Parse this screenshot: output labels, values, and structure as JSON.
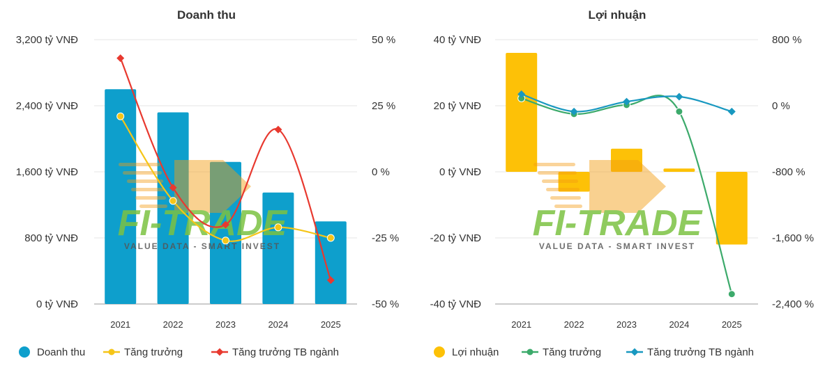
{
  "colors": {
    "revenue_bar": "#0e9fcc",
    "revenue_growth": "#f5c518",
    "revenue_industry": "#e8392f",
    "profit_bar": "#fdc107",
    "profit_growth": "#3caa6b",
    "profit_industry": "#1898c0",
    "grid": "#e6e6e6",
    "watermark_green": "#7cc242",
    "watermark_orange": "#f39c12"
  },
  "watermark": {
    "brand": "FI-TRADE",
    "tagline": "VALUE DATA - SMART INVEST"
  },
  "chart_data": [
    {
      "type": "bar",
      "title": "Doanh thu",
      "categories": [
        "2021",
        "2022",
        "2023",
        "2024",
        "2025"
      ],
      "y_left": {
        "ylim": [
          0,
          3200
        ],
        "ticks": [
          0,
          800,
          1600,
          2400,
          3200
        ],
        "tick_labels": [
          "0 tỷ VNĐ",
          "800 tỷ VNĐ",
          "1,600 tỷ VNĐ",
          "2,400 tỷ VNĐ",
          "3,200 tỷ VNĐ"
        ]
      },
      "y_right": {
        "ylim": [
          -50,
          50
        ],
        "ticks": [
          -50,
          -25,
          0,
          25,
          50
        ],
        "tick_labels": [
          "-50 %",
          "-25 %",
          "0 %",
          "25 %",
          "50 %"
        ]
      },
      "grid": true,
      "legend_position": "bottom",
      "series": [
        {
          "name": "Doanh thu",
          "kind": "bar",
          "axis": "left",
          "values": [
            2600,
            2320,
            1720,
            1350,
            1000
          ]
        },
        {
          "name": "Tăng trưởng",
          "kind": "line",
          "axis": "right",
          "marker": "circle",
          "values": [
            21,
            -11,
            -26,
            -21,
            -25
          ]
        },
        {
          "name": "Tăng trưởng TB ngành",
          "kind": "line",
          "axis": "right",
          "marker": "diamond",
          "values": [
            43,
            -6,
            -20,
            16,
            -41
          ]
        }
      ]
    },
    {
      "type": "bar",
      "title": "Lợi nhuận",
      "categories": [
        "2021",
        "2022",
        "2023",
        "2024",
        "2025"
      ],
      "y_left": {
        "ylim": [
          -40,
          40
        ],
        "ticks": [
          -40,
          -20,
          0,
          20,
          40
        ],
        "tick_labels": [
          "-40 tỷ VNĐ",
          "-20 tỷ VNĐ",
          "0 tỷ VNĐ",
          "20 tỷ VNĐ",
          "40 tỷ VNĐ"
        ]
      },
      "y_right": {
        "ylim": [
          -2400,
          800
        ],
        "ticks": [
          -2400,
          -1600,
          -800,
          0,
          800
        ],
        "tick_labels": [
          "-2,400 %",
          "-1,600 %",
          "-800 %",
          "0 %",
          "800 %"
        ]
      },
      "grid": true,
      "legend_position": "bottom",
      "series": [
        {
          "name": "Lợi nhuận",
          "kind": "bar",
          "axis": "left",
          "values": [
            36,
            -6,
            7,
            1,
            -22
          ]
        },
        {
          "name": "Tăng trưởng",
          "kind": "line",
          "axis": "right",
          "marker": "circle",
          "values": [
            90,
            -100,
            10,
            -70,
            -2280
          ]
        },
        {
          "name": "Tăng trưởng TB ngành",
          "kind": "line",
          "axis": "right",
          "marker": "diamond",
          "values": [
            140,
            -70,
            50,
            110,
            -70
          ]
        }
      ]
    }
  ]
}
